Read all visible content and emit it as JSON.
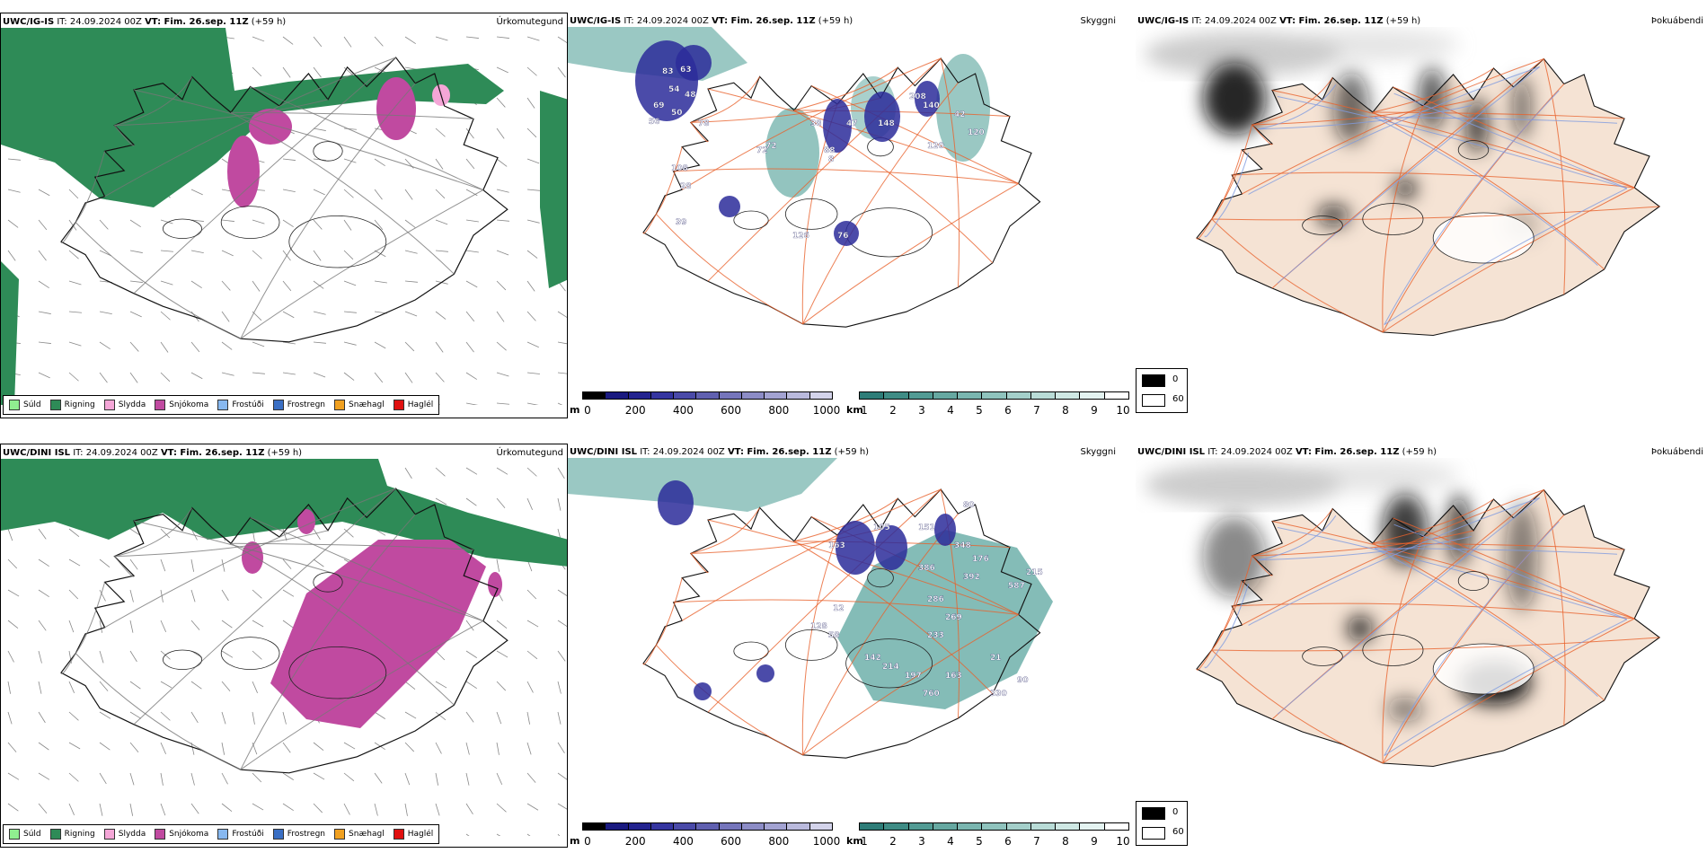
{
  "ig_is": {
    "precip": {
      "model": "UWC/IG-IS",
      "it": "IT: 24.09.2024 00Z",
      "vt": "VT: Fim. 26.sep. 11Z",
      "lead": "(+59 h)",
      "title": "Úrkomutegund"
    },
    "vis": {
      "model": "UWC/IG-IS",
      "it": "IT: 24.09.2024 00Z",
      "vt": "VT: Fim. 26.sep. 11Z",
      "lead": "(+59 h)",
      "title": "Skyggni",
      "labels": [
        "83",
        "63",
        "54",
        "48",
        "69",
        "50",
        "56",
        "78",
        "72",
        "108",
        "28",
        "38",
        "47",
        "88",
        "8",
        "148",
        "208",
        "140",
        "120",
        "72",
        "126",
        "76",
        "39",
        "42",
        "120"
      ]
    },
    "fog": {
      "model": "UWC/IG-IS",
      "it": "IT: 24.09.2024 00Z",
      "vt": "VT: Fim. 26.sep. 11Z",
      "lead": "(+59 h)",
      "title": "Þokuábendi"
    }
  },
  "dini": {
    "precip": {
      "model": "UWC/DINI ISL",
      "it": "IT: 24.09.2024 00Z",
      "vt": "VT: Fim. 26.sep. 11Z",
      "lead": "(+59 h)",
      "title": "Úrkomutegund"
    },
    "vis": {
      "model": "UWC/DINI ISL",
      "it": "IT: 24.09.2024 00Z",
      "vt": "VT: Fim. 26.sep. 11Z",
      "lead": "(+59 h)",
      "title": "Skyggni",
      "labels": [
        "80",
        "151",
        "105",
        "348",
        "176",
        "386",
        "392",
        "587",
        "215",
        "286",
        "269",
        "233",
        "142",
        "214",
        "197",
        "163",
        "760",
        "90",
        "330",
        "21",
        "163",
        "128",
        "58",
        "12"
      ]
    },
    "fog": {
      "model": "UWC/DINI ISL",
      "it": "IT: 24.09.2024 00Z",
      "vt": "VT: Fim. 26.sep. 11Z",
      "lead": "(+59 h)",
      "title": "Þokuábendi"
    }
  },
  "precip_legend": [
    {
      "label": "Súld",
      "color": "#90ee90"
    },
    {
      "label": "Rigning",
      "color": "#2e8b57"
    },
    {
      "label": "Slydda",
      "color": "#f4a6d7"
    },
    {
      "label": "Snjókoma",
      "color": "#c04aa0"
    },
    {
      "label": "Frostúði",
      "color": "#87b8f0"
    },
    {
      "label": "Frostregn",
      "color": "#3a6fc4"
    },
    {
      "label": "Snæhagl",
      "color": "#f0a020"
    },
    {
      "label": "Haglél",
      "color": "#e01010"
    }
  ],
  "ceiling_bar": {
    "unit": "m",
    "ticks": [
      "0",
      "200",
      "400",
      "600",
      "800",
      "1000"
    ],
    "colors": [
      "#000000",
      "#1a1a80",
      "#23238f",
      "#3535a0",
      "#4a4aa8",
      "#6060b0",
      "#7575bb",
      "#8c8cc6",
      "#a3a3d2",
      "#babadd",
      "#d3d3ea"
    ]
  },
  "vis_bar": {
    "unit": "km",
    "ticks": [
      "1",
      "2",
      "3",
      "4",
      "5",
      "6",
      "7",
      "8",
      "9",
      "10"
    ],
    "colors": [
      "#2e7d78",
      "#3f8c85",
      "#529b94",
      "#66a8a1",
      "#7ab6b0",
      "#8fc3bd",
      "#a4cfca",
      "#b9dcd7",
      "#cfe8e4",
      "#e4f3f1",
      "#ffffff"
    ]
  },
  "fog_legend": {
    "max": "0",
    "min": "60"
  },
  "colors": {
    "land": "#f5e3d4",
    "road": "#e8612c",
    "river": "#7f9be0",
    "rain": "#2e8b57",
    "snow": "#c04aa0",
    "vis": "#6fb0aa",
    "ceiling": "#2b2b9a"
  }
}
